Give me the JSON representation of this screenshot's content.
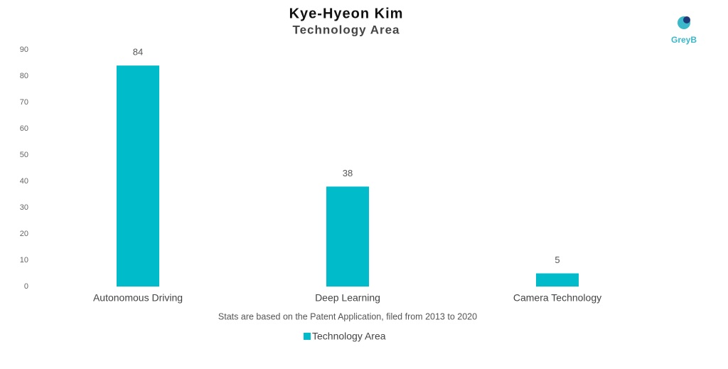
{
  "chart_data": {
    "type": "bar",
    "title": "Kye-Hyeon Kim",
    "subtitle": "Technology Area",
    "categories": [
      "Autonomous Driving",
      "Deep Learning",
      "Camera Technology"
    ],
    "series": [
      {
        "name": "Technology Area",
        "color": "#00bccb",
        "values": [
          84,
          38,
          5
        ]
      }
    ],
    "ylim": [
      0,
      90
    ],
    "yticks": [
      0,
      10,
      20,
      30,
      40,
      50,
      60,
      70,
      80,
      90
    ],
    "grid": false,
    "footnote": "Stats are based on the Patent Application, filed from 2013 to 2020",
    "legend": "bottom",
    "logo": "GreyB"
  }
}
